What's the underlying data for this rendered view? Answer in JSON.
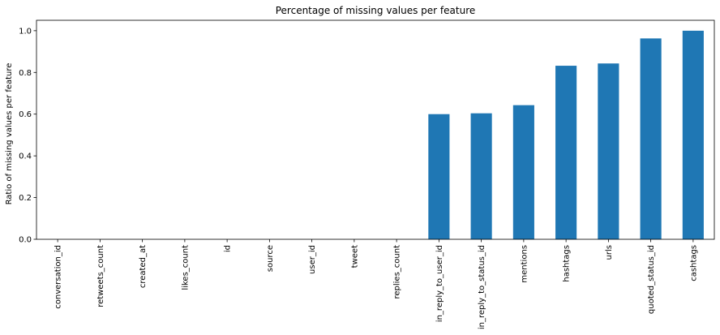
{
  "chart_data": {
    "type": "bar",
    "title": "Percentage of missing values per feature",
    "xlabel": "",
    "ylabel": "Ratio of missing values per feature",
    "categories": [
      "conversation_id",
      "retweets_count",
      "created_at",
      "likes_count",
      "id",
      "source",
      "user_id",
      "tweet",
      "replies_count",
      "in_reply_to_user_id",
      "in_reply_to_status_id",
      "mentions",
      "hashtags",
      "urls",
      "quoted_status_id",
      "cashtags"
    ],
    "values": [
      0,
      0,
      0,
      0,
      0,
      0,
      0,
      0,
      0,
      0.6,
      0.604,
      0.643,
      0.832,
      0.843,
      0.963,
      1.0
    ],
    "ylim": [
      0,
      1.05
    ],
    "yticks": [
      0.0,
      0.2,
      0.4,
      0.6,
      0.8,
      1.0
    ],
    "grid": false,
    "legend": "none",
    "bar_color": "#1f77b4"
  }
}
